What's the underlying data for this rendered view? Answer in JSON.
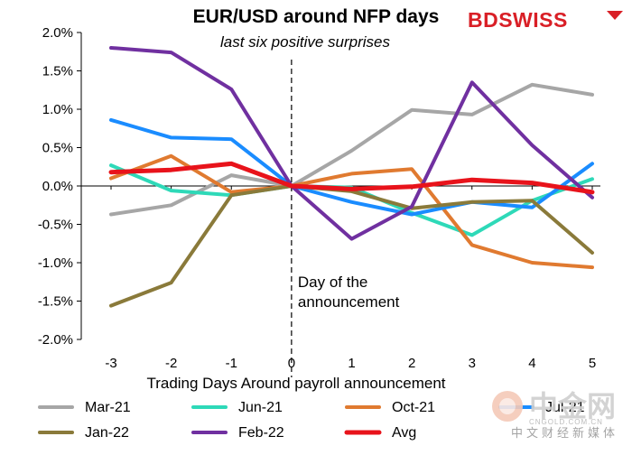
{
  "chart_data": {
    "type": "line",
    "title": "EUR/USD around NFP days",
    "subtitle": "last six positive surprises",
    "xlabel": "Trading Days Around payroll announcement",
    "ylabel": "",
    "x": [
      -3,
      -2,
      -1,
      0,
      1,
      2,
      3,
      4,
      5
    ],
    "x_tick_labels": [
      "-3",
      "-2",
      "-1",
      "0",
      "1",
      "2",
      "3",
      "4",
      "5"
    ],
    "ylim": [
      -2.0,
      2.0
    ],
    "y_tick_labels": [
      "2.0%",
      "1.5%",
      "1.0%",
      "0.5%",
      "0.0%",
      "-0.5%",
      "-1.0%",
      "-1.5%",
      "-2.0%"
    ],
    "y_ticks": [
      2.0,
      1.5,
      1.0,
      0.5,
      0.0,
      -0.5,
      -1.0,
      -1.5,
      -2.0
    ],
    "grid": false,
    "legend_position": "bottom",
    "annotation": {
      "x": 0,
      "lines": [
        "Day of the",
        "announcement"
      ]
    },
    "series": [
      {
        "name": "Mar-21",
        "color": "#a6a6a6",
        "values": [
          -0.37,
          -0.25,
          0.14,
          0.0,
          0.46,
          0.99,
          0.93,
          1.32,
          1.19
        ]
      },
      {
        "name": "Jun-21",
        "color": "#2ed9b8",
        "values": [
          0.27,
          -0.06,
          -0.12,
          0.0,
          -0.02,
          -0.35,
          -0.64,
          -0.19,
          0.09
        ]
      },
      {
        "name": "Oct-21",
        "color": "#e07a30",
        "values": [
          0.1,
          0.39,
          -0.08,
          0.0,
          0.16,
          0.22,
          -0.77,
          -1.0,
          -1.06
        ]
      },
      {
        "name": "Jul-21",
        "color": "#1a8cff",
        "values": [
          0.86,
          0.63,
          0.61,
          0.0,
          -0.21,
          -0.37,
          -0.21,
          -0.28,
          0.29
        ]
      },
      {
        "name": "Jan-22",
        "color": "#8a7a3a",
        "values": [
          -1.56,
          -1.26,
          -0.12,
          0.0,
          -0.07,
          -0.29,
          -0.21,
          -0.19,
          -0.87
        ]
      },
      {
        "name": "Feb-22",
        "color": "#7030a0",
        "values": [
          1.8,
          1.74,
          1.26,
          0.0,
          -0.69,
          -0.27,
          1.35,
          0.53,
          -0.15
        ]
      },
      {
        "name": "Avg",
        "color": "#e8131b",
        "values": [
          0.18,
          0.21,
          0.29,
          0.0,
          -0.04,
          -0.01,
          0.08,
          0.04,
          -0.08
        ]
      }
    ]
  },
  "brand": {
    "name": "BDSWISS",
    "color": "#d91f26"
  },
  "watermark": {
    "main": "中金网",
    "sub": "中文财经新媒体",
    "url": "CNGOLD.COM.CN"
  }
}
